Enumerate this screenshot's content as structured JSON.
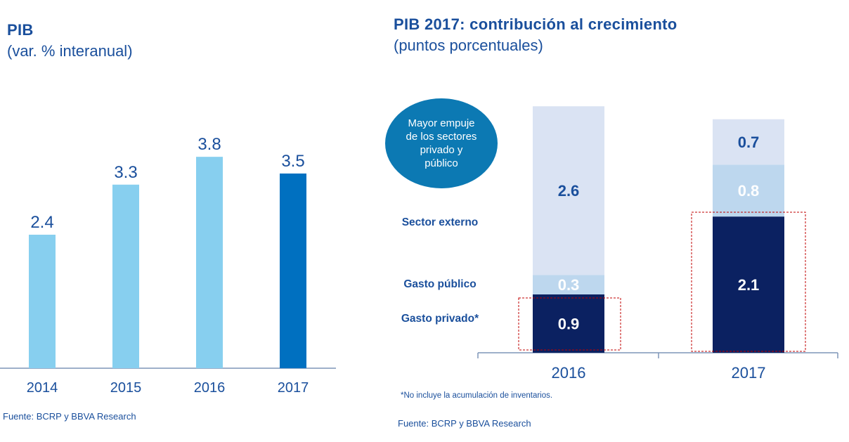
{
  "left": {
    "title": "PIB",
    "subtitle": "(var. % interanual)",
    "source": "Fuente: BCRP y BBVA Research"
  },
  "right": {
    "title": "PIB 2017: contribución al crecimiento",
    "subtitle": "(puntos porcentuales)",
    "bubble_text": "Mayor empuje de los sectores privado y público",
    "note": "*No incluye la acumulación de inventarios.",
    "source": "Fuente: BCRP y BBVA Research"
  },
  "colors": {
    "title_blue": "#1a4f9c",
    "light_bar": "#87cfef",
    "highlight_bar": "#0070c0",
    "sector_externo": "#dae3f3",
    "gasto_publico": "#bdd7ee",
    "gasto_privado": "#0b2161",
    "bubble": "#0c79b3",
    "highlight_box": "#c00000"
  },
  "chart_data": [
    {
      "type": "bar",
      "title": "PIB",
      "subtitle": "(var. % interanual)",
      "categories": [
        "2014",
        "2015",
        "2016",
        "2017"
      ],
      "values": [
        2.4,
        3.3,
        3.8,
        3.5
      ],
      "data_labels": [
        "2.4",
        "3.3",
        "3.8",
        "3.5"
      ],
      "highlighted_category": "2017",
      "ylim": [
        0,
        4.8
      ],
      "grid": false,
      "legend": "none"
    },
    {
      "type": "bar",
      "stacked": true,
      "title": "PIB 2017: contribución al crecimiento",
      "subtitle": "(puntos porcentuales)",
      "categories": [
        "2016",
        "2017"
      ],
      "series": [
        {
          "name": "Gasto privado*",
          "values": [
            0.9,
            2.1
          ],
          "labels": [
            "0.9",
            "2.1"
          ],
          "color_key": "gasto_privado"
        },
        {
          "name": "Gasto público",
          "values": [
            0.3,
            0.8
          ],
          "labels": [
            "0.3",
            "0.8"
          ],
          "color_key": "gasto_publico"
        },
        {
          "name": "Sector externo",
          "values": [
            2.6,
            0.7
          ],
          "labels": [
            "2.6",
            "0.7"
          ],
          "color_key": "sector_externo"
        }
      ],
      "ylim": [
        0,
        3.9
      ],
      "grid": false,
      "legend": "left"
    }
  ]
}
